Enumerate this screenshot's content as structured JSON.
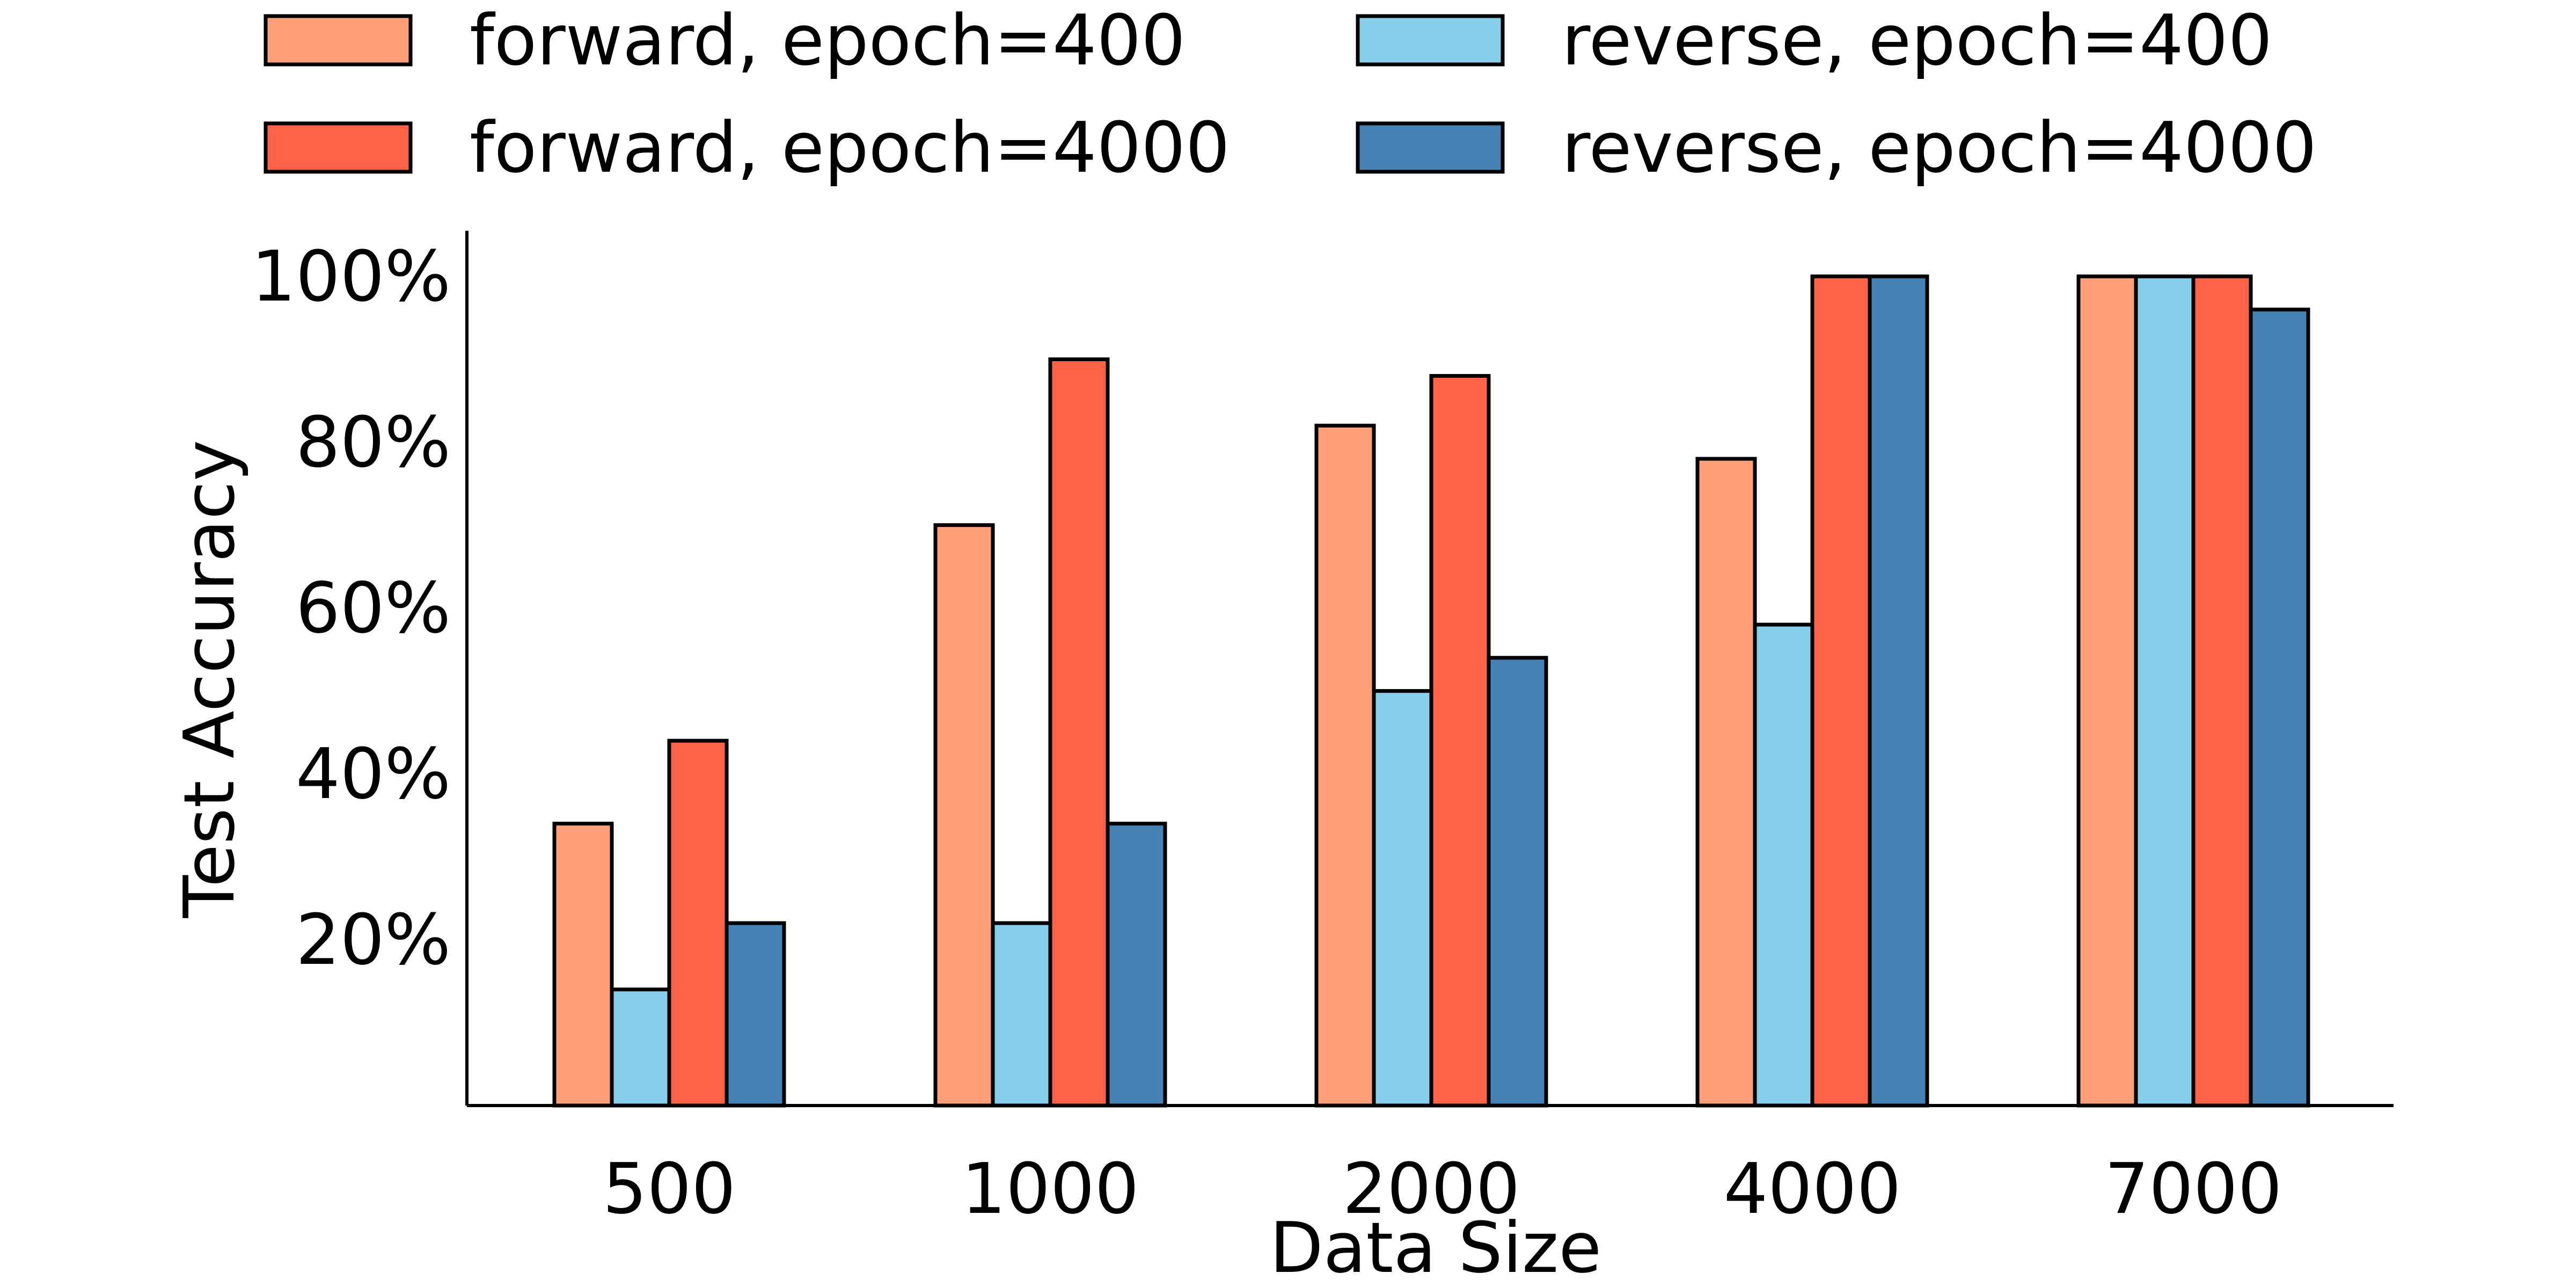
{
  "chart_data": {
    "type": "bar",
    "title": "",
    "xlabel": "Data Size",
    "ylabel": "Test Accuracy",
    "categories": [
      "500",
      "1000",
      "2000",
      "4000",
      "7000"
    ],
    "ylim": [
      0,
      105
    ],
    "yticks": [
      20,
      40,
      60,
      80,
      100
    ],
    "ytick_labels": [
      "20%",
      "40%",
      "60%",
      "80%",
      "100%"
    ],
    "grid": false,
    "legend_position": "top",
    "series": [
      {
        "name": "forward, epoch=400",
        "color": "#FFA07A",
        "values": [
          34,
          70,
          82,
          78,
          100
        ]
      },
      {
        "name": "reverse, epoch=400",
        "color": "#87CEEB",
        "values": [
          14,
          22,
          50,
          58,
          100
        ]
      },
      {
        "name": "forward, epoch=4000",
        "color": "#FF6347",
        "values": [
          44,
          90,
          88,
          100,
          100
        ]
      },
      {
        "name": "reverse, epoch=4000",
        "color": "#4682B4",
        "values": [
          22,
          34,
          54,
          100,
          96
        ]
      }
    ],
    "legend_order": [
      0,
      2,
      1,
      3
    ]
  }
}
